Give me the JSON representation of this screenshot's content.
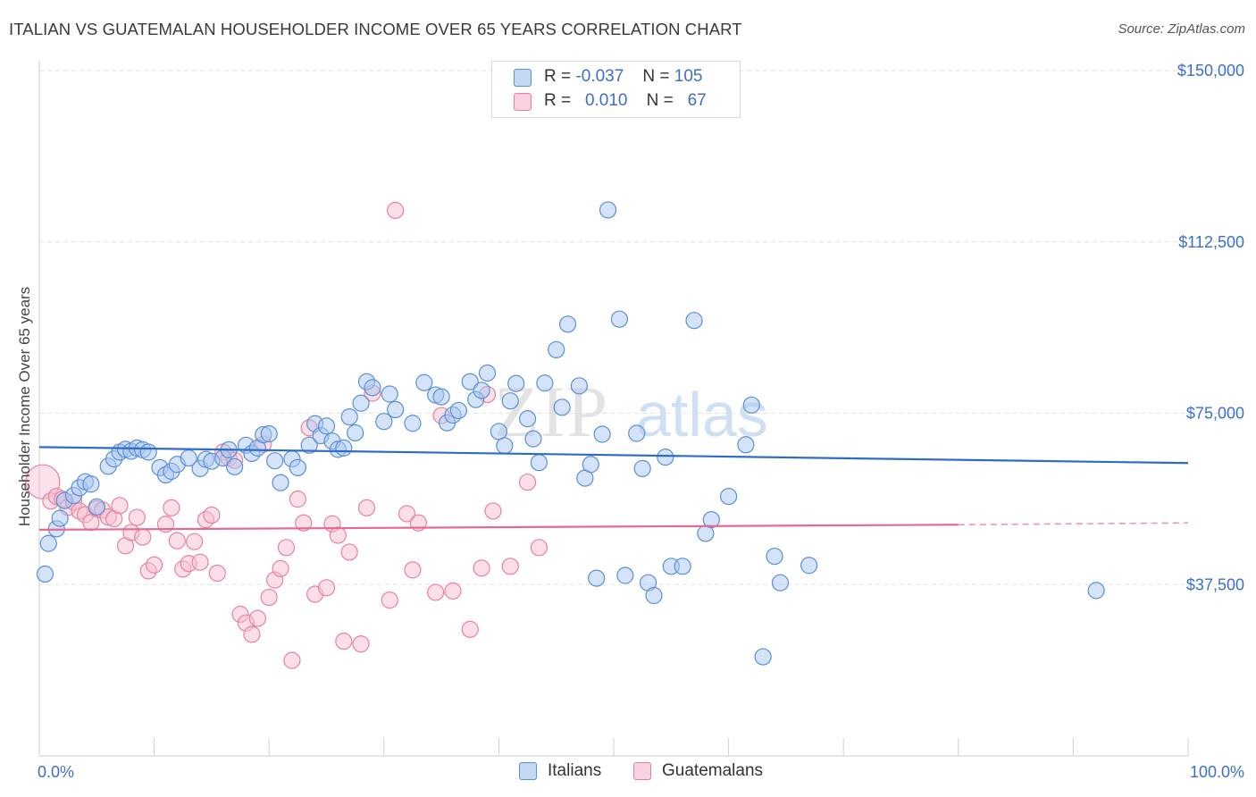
{
  "header": {
    "title": "ITALIAN VS GUATEMALAN HOUSEHOLDER INCOME OVER 65 YEARS CORRELATION CHART",
    "source": "Source: ZipAtlas.com"
  },
  "legend": {
    "rows": [
      {
        "r_label": "R =",
        "r_value": "-0.037",
        "n_label": "N =",
        "n_value": "105"
      },
      {
        "r_label": "R =",
        "r_value": "0.010",
        "n_label": "N =",
        "n_value": "67"
      }
    ]
  },
  "bottom_legend": {
    "italians": "Italians",
    "guatemalans": "Guatemalans"
  },
  "watermark": {
    "zip": "ZIP",
    "atlas": "atlas"
  },
  "colors": {
    "blue_fill": "#a9c8ef",
    "blue_stroke": "#5b8fd6",
    "blue_line": "#2f6cc8",
    "pink_fill": "#f6bfd0",
    "pink_stroke": "#e8819f",
    "pink_line": "#e46a92",
    "axis_text": "#3d6fc9",
    "grid": "#e2e2e2"
  },
  "chart_data": {
    "type": "scatter",
    "title": "ITALIAN VS GUATEMALAN HOUSEHOLDER INCOME OVER 65 YEARS CORRELATION CHART",
    "xlabel": "",
    "ylabel": "Householder Income Over 65 years",
    "xlim": [
      0,
      100
    ],
    "ylim": [
      0,
      155000
    ],
    "x_tick_labels": [
      "0.0%",
      "100.0%"
    ],
    "y_ticks": [
      37500,
      75000,
      112500,
      150000
    ],
    "y_tick_labels": [
      "$37,500",
      "$75,000",
      "$112,500",
      "$150,000"
    ],
    "grid": true,
    "legend_position": "top-center",
    "series": [
      {
        "name": "Italians",
        "r": -0.037,
        "n": 105,
        "trend": {
          "x": [
            0,
            100
          ],
          "y": [
            67600,
            64100
          ]
        },
        "points": [
          [
            0.5,
            39800
          ],
          [
            0.8,
            46500
          ],
          [
            1.5,
            49700
          ],
          [
            1.8,
            52000
          ],
          [
            2.2,
            55900
          ],
          [
            3.0,
            57000
          ],
          [
            3.5,
            58700
          ],
          [
            4.0,
            60000
          ],
          [
            4.5,
            59500
          ],
          [
            5.0,
            54500
          ],
          [
            6.0,
            63400
          ],
          [
            6.5,
            65000
          ],
          [
            7.0,
            66500
          ],
          [
            7.5,
            67100
          ],
          [
            8.0,
            66700
          ],
          [
            8.5,
            67400
          ],
          [
            9.0,
            67000
          ],
          [
            9.5,
            66500
          ],
          [
            10.5,
            63100
          ],
          [
            11.0,
            61500
          ],
          [
            11.5,
            62300
          ],
          [
            12.0,
            63800
          ],
          [
            13.0,
            65200
          ],
          [
            14.0,
            62900
          ],
          [
            14.5,
            64900
          ],
          [
            15.0,
            64500
          ],
          [
            16.0,
            65200
          ],
          [
            16.5,
            67000
          ],
          [
            17.0,
            63300
          ],
          [
            18.0,
            68000
          ],
          [
            18.5,
            66200
          ],
          [
            19.0,
            67400
          ],
          [
            19.5,
            70300
          ],
          [
            20.0,
            70500
          ],
          [
            20.5,
            64600
          ],
          [
            21.0,
            59800
          ],
          [
            22.0,
            65000
          ],
          [
            22.5,
            63100
          ],
          [
            23.5,
            68000
          ],
          [
            24.0,
            72700
          ],
          [
            24.5,
            70100
          ],
          [
            25.0,
            72200
          ],
          [
            25.5,
            68900
          ],
          [
            26.0,
            67100
          ],
          [
            26.5,
            67400
          ],
          [
            27.0,
            74200
          ],
          [
            27.5,
            70700
          ],
          [
            28.0,
            77200
          ],
          [
            28.5,
            81900
          ],
          [
            29.0,
            80600
          ],
          [
            30.0,
            73200
          ],
          [
            30.5,
            79200
          ],
          [
            31.0,
            75800
          ],
          [
            32.5,
            72800
          ],
          [
            33.5,
            81700
          ],
          [
            34.5,
            79000
          ],
          [
            35.0,
            78600
          ],
          [
            35.5,
            72900
          ],
          [
            36.0,
            74600
          ],
          [
            36.5,
            75600
          ],
          [
            37.5,
            81900
          ],
          [
            38.0,
            78000
          ],
          [
            38.5,
            80000
          ],
          [
            39.0,
            83800
          ],
          [
            40.0,
            71000
          ],
          [
            40.5,
            67900
          ],
          [
            41.0,
            77700
          ],
          [
            41.5,
            81500
          ],
          [
            42.5,
            73800
          ],
          [
            43.0,
            69400
          ],
          [
            43.5,
            64200
          ],
          [
            44.0,
            81600
          ],
          [
            45.0,
            88900
          ],
          [
            45.5,
            76300
          ],
          [
            46.0,
            94500
          ],
          [
            47.0,
            81000
          ],
          [
            47.5,
            60800
          ],
          [
            48.0,
            63800
          ],
          [
            48.5,
            38900
          ],
          [
            49.0,
            70400
          ],
          [
            49.5,
            119500
          ],
          [
            50.5,
            95600
          ],
          [
            51.0,
            39500
          ],
          [
            52.0,
            70600
          ],
          [
            52.5,
            62900
          ],
          [
            53.0,
            37900
          ],
          [
            53.5,
            35100
          ],
          [
            54.5,
            65400
          ],
          [
            55.0,
            41500
          ],
          [
            56.0,
            41500
          ],
          [
            57.0,
            95300
          ],
          [
            58.0,
            48700
          ],
          [
            58.5,
            51700
          ],
          [
            60.0,
            56800
          ],
          [
            61.5,
            68100
          ],
          [
            62.0,
            76800
          ],
          [
            63.0,
            21700
          ],
          [
            64.0,
            43700
          ],
          [
            64.5,
            37900
          ],
          [
            67.0,
            41700
          ],
          [
            92.0,
            36200
          ]
        ]
      },
      {
        "name": "Guatemalans",
        "r": 0.01,
        "n": 67,
        "trend": {
          "x": [
            0,
            80
          ],
          "y": [
            49500,
            50600
          ]
        },
        "trend_dashed": {
          "x": [
            80,
            100
          ],
          "y": [
            50600,
            51000
          ]
        },
        "points": [
          [
            0.3,
            60000
          ],
          [
            1.0,
            55800
          ],
          [
            1.5,
            56800
          ],
          [
            2.0,
            56200
          ],
          [
            2.5,
            54400
          ],
          [
            3.0,
            55600
          ],
          [
            3.5,
            53600
          ],
          [
            4.0,
            52800
          ],
          [
            4.5,
            51100
          ],
          [
            5.0,
            54100
          ],
          [
            5.5,
            53800
          ],
          [
            6.0,
            52300
          ],
          [
            6.5,
            51900
          ],
          [
            7.0,
            54800
          ],
          [
            7.5,
            46000
          ],
          [
            8.0,
            48900
          ],
          [
            8.5,
            52200
          ],
          [
            9.0,
            47900
          ],
          [
            9.5,
            40500
          ],
          [
            10.0,
            41800
          ],
          [
            11.0,
            50700
          ],
          [
            11.5,
            54300
          ],
          [
            12.0,
            47100
          ],
          [
            12.5,
            40900
          ],
          [
            13.0,
            42100
          ],
          [
            13.5,
            46900
          ],
          [
            14.0,
            42400
          ],
          [
            14.5,
            51700
          ],
          [
            15.0,
            52700
          ],
          [
            15.5,
            40000
          ],
          [
            16.0,
            66500
          ],
          [
            16.5,
            65200
          ],
          [
            17.0,
            64700
          ],
          [
            17.5,
            31000
          ],
          [
            18.0,
            29100
          ],
          [
            18.5,
            26600
          ],
          [
            19.0,
            30100
          ],
          [
            19.5,
            68200
          ],
          [
            20.0,
            34700
          ],
          [
            20.5,
            38500
          ],
          [
            21.0,
            41000
          ],
          [
            21.5,
            45600
          ],
          [
            22.0,
            20900
          ],
          [
            22.5,
            56200
          ],
          [
            23.0,
            51000
          ],
          [
            23.5,
            71800
          ],
          [
            24.0,
            35400
          ],
          [
            25.0,
            36800
          ],
          [
            25.5,
            50800
          ],
          [
            26.0,
            48300
          ],
          [
            26.5,
            25100
          ],
          [
            27.0,
            44600
          ],
          [
            28.0,
            24500
          ],
          [
            28.5,
            54300
          ],
          [
            29.0,
            79400
          ],
          [
            30.5,
            34100
          ],
          [
            31.0,
            119400
          ],
          [
            32.0,
            53000
          ],
          [
            32.5,
            40700
          ],
          [
            33.0,
            51000
          ],
          [
            34.5,
            35800
          ],
          [
            35.0,
            74500
          ],
          [
            36.0,
            36100
          ],
          [
            37.5,
            27700
          ],
          [
            38.5,
            41100
          ],
          [
            39.0,
            79100
          ],
          [
            39.5,
            53600
          ],
          [
            41.0,
            41500
          ],
          [
            42.5,
            59900
          ],
          [
            43.5,
            45600
          ]
        ]
      }
    ]
  }
}
